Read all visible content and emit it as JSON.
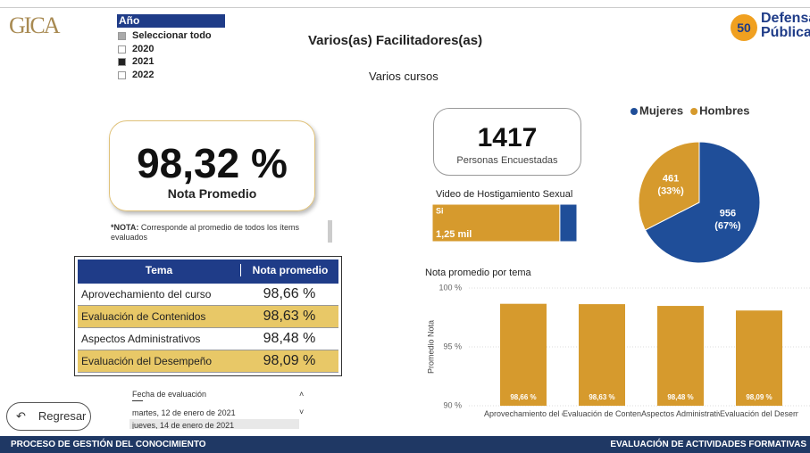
{
  "header": {
    "logo_text": "GICA",
    "title": "Varios(as) Facilitadores(as)",
    "subtitle": "Varios cursos",
    "brand_line1": "Defensa",
    "brand_line2": "Pública",
    "brand_badge": "50"
  },
  "year_filter": {
    "title": "Año",
    "options": [
      {
        "label": "Seleccionar todo",
        "selected": "partial"
      },
      {
        "label": "2020",
        "selected": "no"
      },
      {
        "label": "2021",
        "selected": "yes"
      },
      {
        "label": "2022",
        "selected": "no"
      }
    ]
  },
  "kpi": {
    "value": "98,32 %",
    "label": "Nota Promedio"
  },
  "note": {
    "bold": "*NOTA:",
    "text": "Corresponde al promedio de todos los ítems evaluados"
  },
  "table": {
    "headers": [
      "Tema",
      "Nota promedio"
    ],
    "rows": [
      [
        "Aprovechamiento del curso",
        "98,66 %"
      ],
      [
        "Evaluación de Contenidos",
        "98,63 %"
      ],
      [
        "Aspectos Administrativos",
        "98,48 %"
      ],
      [
        "Evaluación del Desempeño",
        "98,09 %"
      ]
    ]
  },
  "count": {
    "value": 1417,
    "label": "Personas Encuestadas"
  },
  "chart_data": [
    {
      "type": "hbar",
      "title": "Video de Hostigamiento Sexual",
      "stacked": true,
      "categories": [
        null
      ],
      "xlim": [
        0,
        1417
      ],
      "series": [
        {
          "name": "Si",
          "color": "#d69a2d",
          "values": [
            1250
          ],
          "value_labels": [
            "1,25 mil"
          ]
        },
        {
          "name": null,
          "color": "#1f4e99",
          "values": [
            167
          ],
          "value_labels": [
            null
          ]
        }
      ]
    },
    {
      "type": "pie",
      "categories": [
        "Mujeres",
        "Hombres"
      ],
      "values": [
        956,
        461
      ],
      "percent_labels": [
        "(67%)",
        "(33%)"
      ],
      "colors": [
        "#1f4e99",
        "#d69a2d"
      ],
      "legend": "top"
    },
    {
      "type": "bar",
      "title": "Nota promedio por tema",
      "y_label": "Promedio Nota",
      "categories": [
        "Aprovechamiento del curso",
        "Evaluación de Contenidos",
        "Aspectos Administrativos",
        "Evaluación del Desempeño"
      ],
      "values": [
        98.66,
        98.63,
        98.48,
        98.09
      ],
      "value_labels": [
        "98,66 %",
        "98,63 %",
        "98,48 %",
        "98,09 %"
      ],
      "color": "#d69a2d",
      "ylim": [
        90,
        100
      ],
      "yticks": [
        {
          "value": 90,
          "label": "90 %"
        },
        {
          "value": 95,
          "label": "95 %"
        },
        {
          "value": 100,
          "label": "100 %"
        }
      ],
      "grid": true
    }
  ],
  "date_slicer": {
    "title": "Fecha de evaluación",
    "items": [
      "martes, 12 de enero de 2021",
      "jueves, 14 de enero de 2021"
    ]
  },
  "back_button": "Regresar",
  "footer": {
    "left": "PROCESO DE GESTIÓN DEL CONOCIMIENTO",
    "right": "EVALUACIÓN DE ACTIVIDADES FORMATIVAS"
  }
}
